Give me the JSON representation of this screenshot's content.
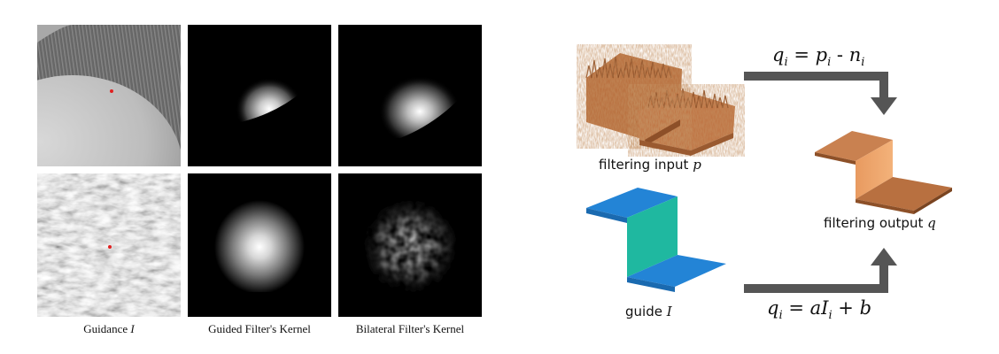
{
  "left_figure": {
    "captions": {
      "guidance": "Guidance",
      "guidance_var": "I",
      "guided_kernel": "Guided Filter's Kernel",
      "bilateral_kernel": "Bilateral Filter's Kernel"
    }
  },
  "right_figure": {
    "input_label": "filtering input",
    "input_var": "p",
    "guide_label": "guide",
    "guide_var": "I",
    "output_label": "filtering output",
    "output_var": "q",
    "top_formula": {
      "lhs": "q",
      "lhs_sub": "i",
      "op": "=",
      "term1": "p",
      "term1_sub": "i",
      "minus": "-",
      "term2": "n",
      "term2_sub": "i"
    },
    "bottom_formula": {
      "lhs": "q",
      "lhs_sub": "i",
      "op": "=",
      "coef": "a",
      "var": "I",
      "var_sub": "i",
      "plus": "+",
      "const": "b"
    },
    "colors": {
      "arrow": "#555555",
      "input_surface": "#c07545",
      "output_surface": "#c98150",
      "guide_blue": "#1f7fd0",
      "guide_teal": "#1fb8a0"
    }
  }
}
